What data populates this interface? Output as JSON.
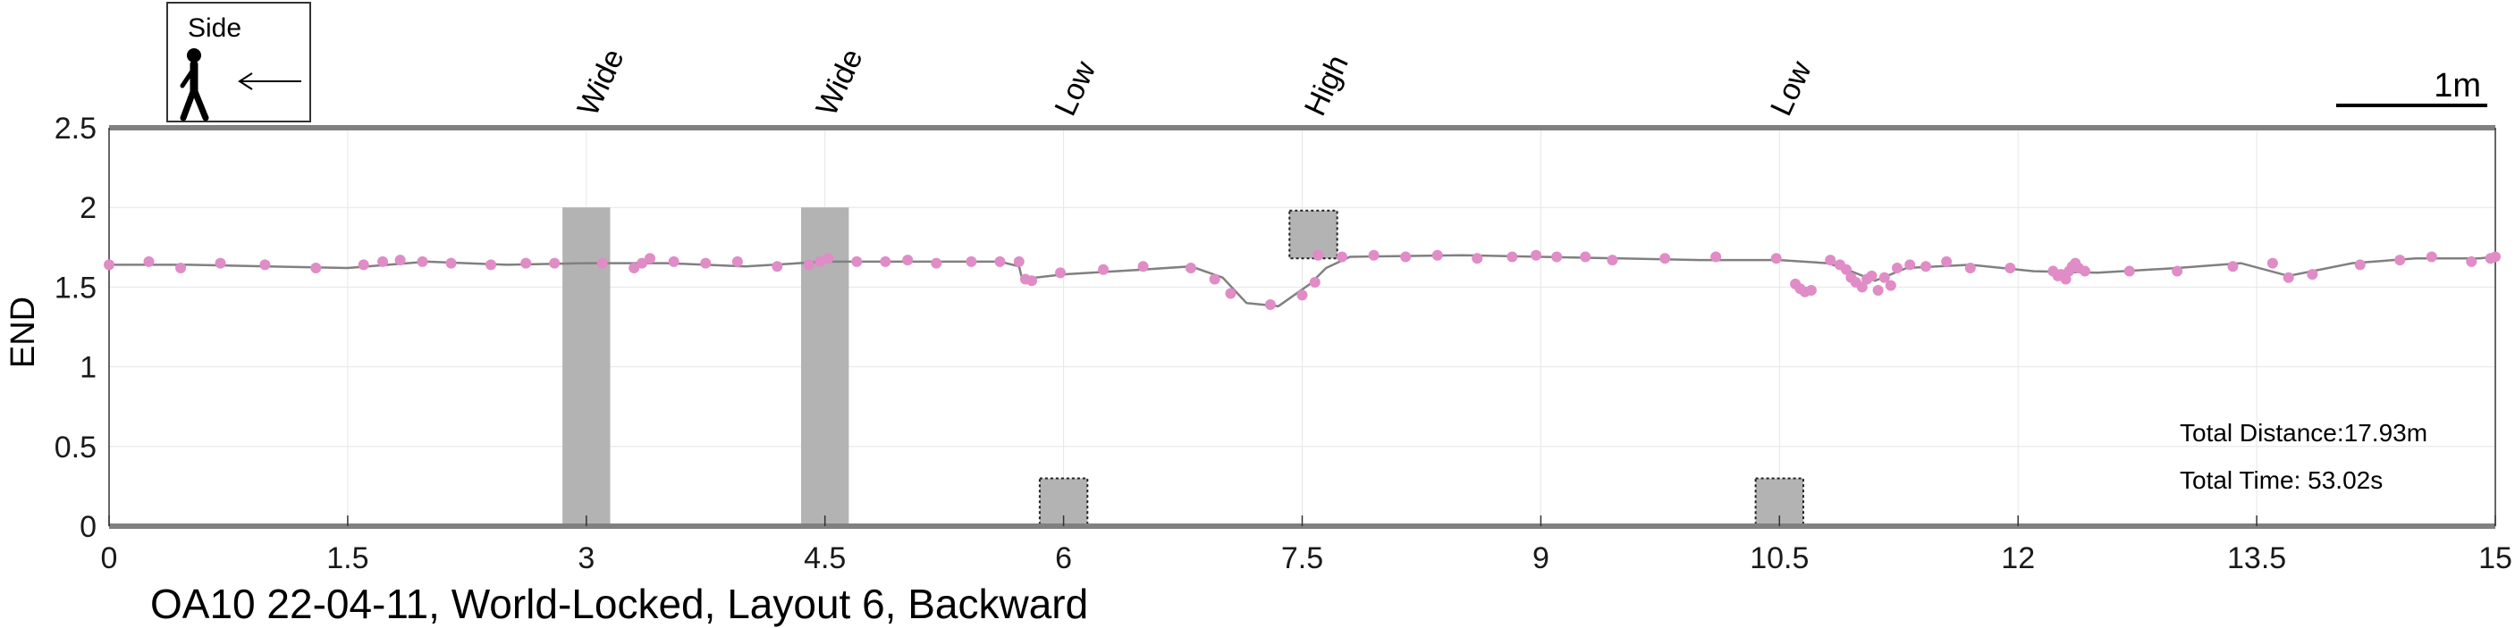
{
  "chart_data": {
    "type": "line",
    "title": "OA10 22-04-11, World-Locked, Layout 6, Backward",
    "xlabel": "",
    "ylabel": "END",
    "xlim": [
      0,
      15
    ],
    "ylim": [
      0,
      2.5
    ],
    "xticks": [
      0,
      1.5,
      3,
      4.5,
      6,
      7.5,
      9,
      10.5,
      12,
      13.5,
      15
    ],
    "xtick_labels": [
      "0",
      "1.5",
      "3",
      "4.5",
      "6",
      "7.5",
      "9",
      "10.5",
      "12",
      "13.5",
      "15"
    ],
    "yticks": [
      0,
      0.5,
      1,
      1.5,
      2,
      2.5
    ],
    "ytick_labels": [
      "0",
      "0.5",
      "1",
      "1.5",
      "2",
      "2.5"
    ],
    "grid": true,
    "colors": {
      "path": "#808080",
      "marker": "#e08cc6",
      "obstacle": "#b3b3b3",
      "axis_bar": "#808080"
    },
    "path": [
      [
        0,
        1.64
      ],
      [
        0.5,
        1.64
      ],
      [
        1.0,
        1.63
      ],
      [
        1.5,
        1.62
      ],
      [
        2.0,
        1.66
      ],
      [
        2.5,
        1.64
      ],
      [
        3.0,
        1.65
      ],
      [
        3.5,
        1.65
      ],
      [
        4.0,
        1.63
      ],
      [
        4.5,
        1.66
      ],
      [
        5.0,
        1.66
      ],
      [
        5.6,
        1.66
      ],
      [
        5.72,
        1.63
      ],
      [
        5.74,
        1.55
      ],
      [
        6.0,
        1.58
      ],
      [
        6.5,
        1.61
      ],
      [
        6.8,
        1.63
      ],
      [
        7.0,
        1.56
      ],
      [
        7.15,
        1.4
      ],
      [
        7.35,
        1.38
      ],
      [
        7.55,
        1.52
      ],
      [
        7.65,
        1.62
      ],
      [
        7.8,
        1.69
      ],
      [
        8.5,
        1.7
      ],
      [
        9.0,
        1.69
      ],
      [
        9.5,
        1.68
      ],
      [
        10.0,
        1.67
      ],
      [
        10.5,
        1.67
      ],
      [
        10.8,
        1.65
      ],
      [
        10.9,
        1.62
      ],
      [
        11.1,
        1.54
      ],
      [
        11.3,
        1.62
      ],
      [
        11.7,
        1.64
      ],
      [
        12.1,
        1.6
      ],
      [
        12.5,
        1.59
      ],
      [
        13.0,
        1.62
      ],
      [
        13.4,
        1.65
      ],
      [
        13.7,
        1.57
      ],
      [
        14.1,
        1.65
      ],
      [
        14.5,
        1.68
      ],
      [
        14.9,
        1.68
      ],
      [
        15.0,
        1.69
      ]
    ],
    "markers": [
      [
        0.0,
        1.64
      ],
      [
        0.25,
        1.66
      ],
      [
        0.45,
        1.62
      ],
      [
        0.7,
        1.65
      ],
      [
        0.98,
        1.64
      ],
      [
        1.3,
        1.62
      ],
      [
        1.6,
        1.64
      ],
      [
        1.72,
        1.66
      ],
      [
        1.83,
        1.67
      ],
      [
        1.97,
        1.66
      ],
      [
        2.15,
        1.65
      ],
      [
        2.4,
        1.64
      ],
      [
        2.62,
        1.65
      ],
      [
        2.8,
        1.65
      ],
      [
        3.1,
        1.65
      ],
      [
        3.3,
        1.62
      ],
      [
        3.35,
        1.65
      ],
      [
        3.4,
        1.68
      ],
      [
        3.55,
        1.66
      ],
      [
        3.75,
        1.65
      ],
      [
        3.95,
        1.66
      ],
      [
        4.2,
        1.63
      ],
      [
        4.4,
        1.64
      ],
      [
        4.47,
        1.66
      ],
      [
        4.52,
        1.68
      ],
      [
        4.7,
        1.66
      ],
      [
        4.88,
        1.66
      ],
      [
        5.02,
        1.67
      ],
      [
        5.2,
        1.65
      ],
      [
        5.42,
        1.66
      ],
      [
        5.6,
        1.66
      ],
      [
        5.72,
        1.66
      ],
      [
        5.76,
        1.55
      ],
      [
        5.8,
        1.54
      ],
      [
        5.98,
        1.59
      ],
      [
        6.25,
        1.61
      ],
      [
        6.5,
        1.63
      ],
      [
        6.8,
        1.62
      ],
      [
        6.95,
        1.55
      ],
      [
        7.05,
        1.46
      ],
      [
        7.3,
        1.39
      ],
      [
        7.5,
        1.45
      ],
      [
        7.58,
        1.53
      ],
      [
        7.6,
        1.7
      ],
      [
        7.75,
        1.69
      ],
      [
        7.95,
        1.7
      ],
      [
        8.15,
        1.69
      ],
      [
        8.35,
        1.7
      ],
      [
        8.6,
        1.68
      ],
      [
        8.82,
        1.69
      ],
      [
        8.97,
        1.7
      ],
      [
        9.1,
        1.69
      ],
      [
        9.28,
        1.69
      ],
      [
        9.45,
        1.67
      ],
      [
        9.78,
        1.68
      ],
      [
        10.1,
        1.69
      ],
      [
        10.48,
        1.68
      ],
      [
        10.6,
        1.52
      ],
      [
        10.63,
        1.49
      ],
      [
        10.66,
        1.47
      ],
      [
        10.7,
        1.48
      ],
      [
        10.82,
        1.67
      ],
      [
        10.88,
        1.64
      ],
      [
        10.92,
        1.61
      ],
      [
        10.95,
        1.56
      ],
      [
        10.98,
        1.53
      ],
      [
        11.02,
        1.5
      ],
      [
        11.05,
        1.55
      ],
      [
        11.08,
        1.57
      ],
      [
        11.12,
        1.48
      ],
      [
        11.16,
        1.56
      ],
      [
        11.2,
        1.51
      ],
      [
        11.24,
        1.62
      ],
      [
        11.32,
        1.64
      ],
      [
        11.42,
        1.63
      ],
      [
        11.55,
        1.66
      ],
      [
        11.7,
        1.62
      ],
      [
        11.95,
        1.62
      ],
      [
        12.22,
        1.6
      ],
      [
        12.25,
        1.57
      ],
      [
        12.27,
        1.58
      ],
      [
        12.3,
        1.55
      ],
      [
        12.32,
        1.6
      ],
      [
        12.34,
        1.63
      ],
      [
        12.36,
        1.65
      ],
      [
        12.38,
        1.62
      ],
      [
        12.42,
        1.6
      ],
      [
        12.7,
        1.6
      ],
      [
        13.0,
        1.6
      ],
      [
        13.35,
        1.63
      ],
      [
        13.6,
        1.65
      ],
      [
        13.7,
        1.56
      ],
      [
        13.85,
        1.58
      ],
      [
        14.15,
        1.64
      ],
      [
        14.4,
        1.67
      ],
      [
        14.6,
        1.69
      ],
      [
        14.85,
        1.66
      ],
      [
        14.97,
        1.68
      ],
      [
        15.0,
        1.69
      ]
    ],
    "obstacles": [
      {
        "label": "Wide",
        "x": [
          2.85,
          3.15
        ],
        "y": [
          0,
          2.0
        ],
        "style": "solid"
      },
      {
        "label": "Wide",
        "x": [
          4.35,
          4.65
        ],
        "y": [
          0,
          2.0
        ],
        "style": "solid"
      },
      {
        "label": "Low",
        "x": [
          5.85,
          6.15
        ],
        "y": [
          0,
          0.3
        ],
        "style": "dotted"
      },
      {
        "label": "High",
        "x": [
          7.42,
          7.72
        ],
        "y": [
          1.68,
          1.98
        ],
        "style": "dotted"
      },
      {
        "label": "Low",
        "x": [
          10.35,
          10.65
        ],
        "y": [
          0,
          0.3
        ],
        "style": "dotted"
      }
    ],
    "annotations": {
      "total_distance": "Total Distance:17.93m",
      "total_time": "Total Time: 53.02s"
    },
    "legend": {
      "text": "Side",
      "placement": "top-left",
      "icons": [
        "pedestrian-icon",
        "left-arrow-icon"
      ]
    },
    "scale_bar": {
      "label": "1m",
      "length": 1,
      "placement": "top-right"
    }
  }
}
